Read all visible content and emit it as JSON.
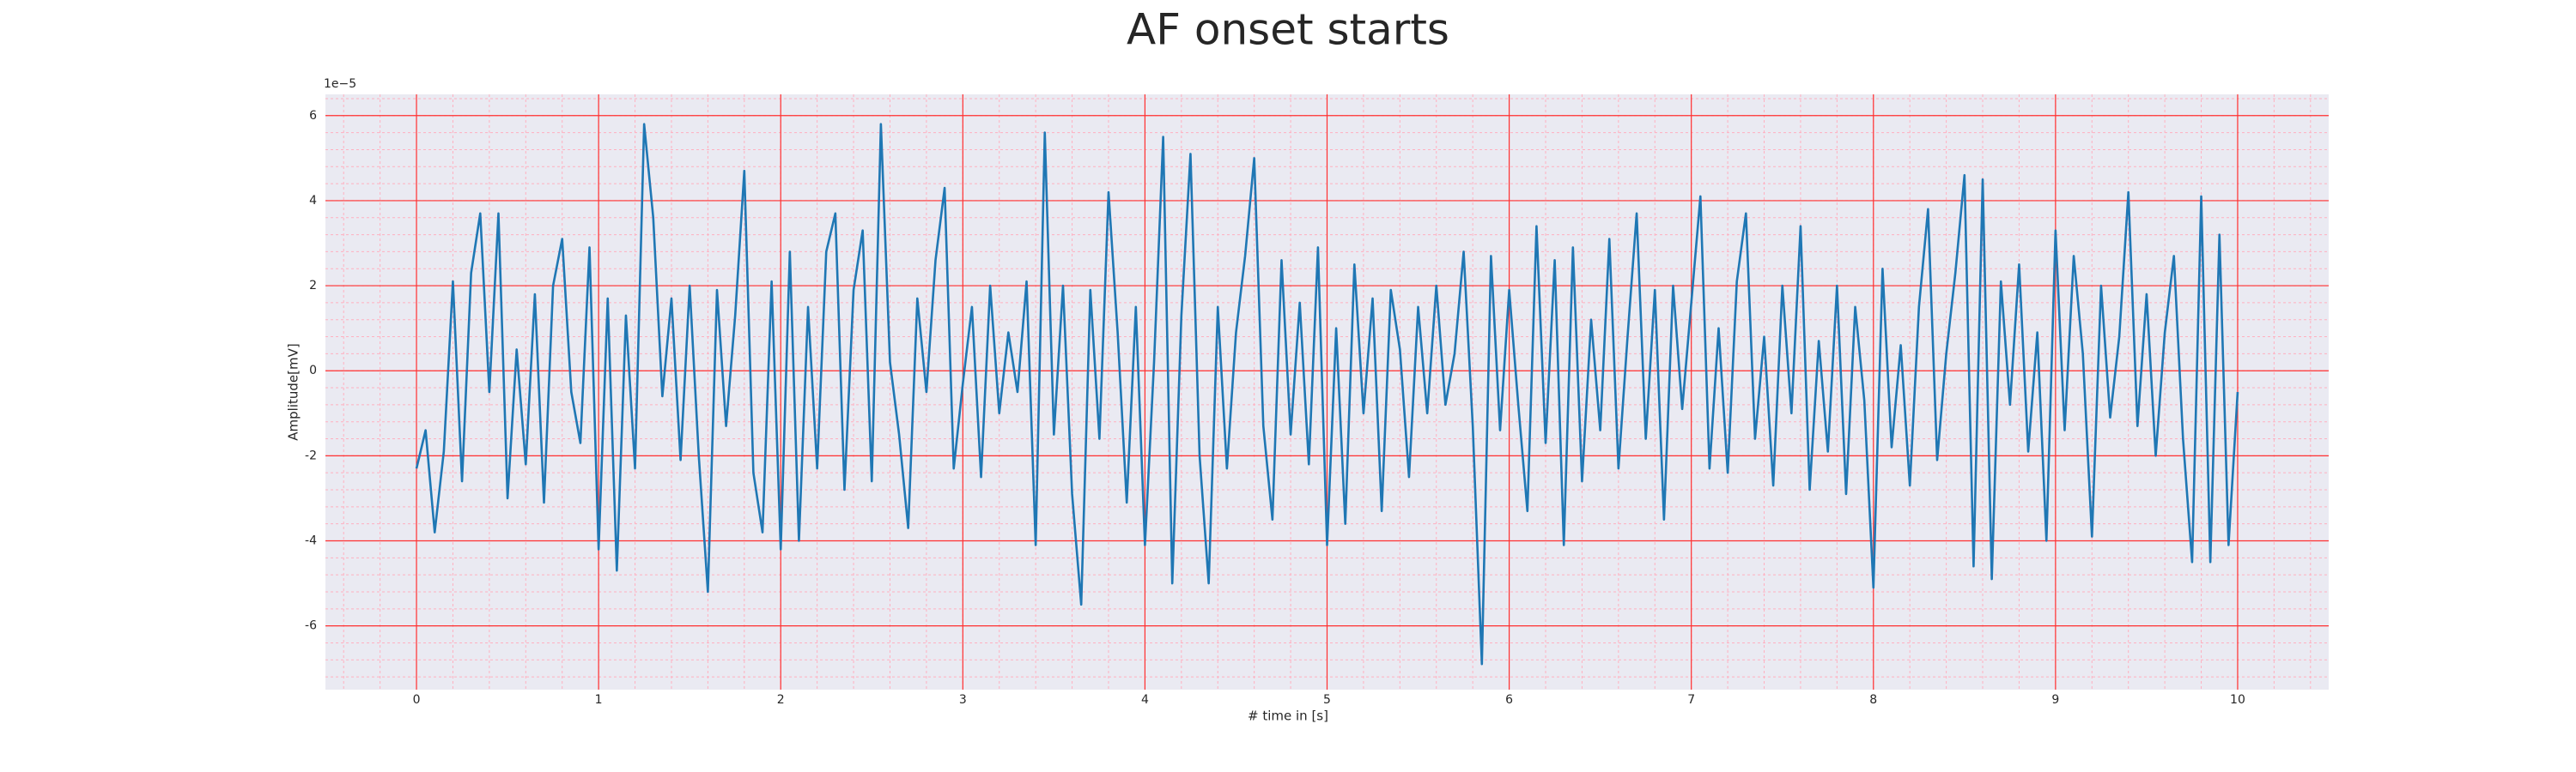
{
  "chart_data": {
    "type": "line",
    "title": "AF onset starts",
    "xlabel": "# time in [s]",
    "ylabel": "Amplitude[mV]",
    "y_offset_text": "1e−5",
    "x": [
      0,
      0.05,
      0.1,
      0.15,
      0.2,
      0.25,
      0.3,
      0.35,
      0.4,
      0.45,
      0.5,
      0.55,
      0.6,
      0.65,
      0.7,
      0.75,
      0.8,
      0.85,
      0.9,
      0.95,
      1,
      1.05,
      1.1,
      1.15,
      1.2,
      1.25,
      1.3,
      1.35,
      1.4,
      1.45,
      1.5,
      1.55,
      1.6,
      1.65,
      1.7,
      1.75,
      1.8,
      1.85,
      1.9,
      1.95,
      2,
      2.05,
      2.1,
      2.15,
      2.2,
      2.25,
      2.3,
      2.35,
      2.4,
      2.45,
      2.5,
      2.55,
      2.6,
      2.65,
      2.7,
      2.75,
      2.8,
      2.85,
      2.9,
      2.95,
      3,
      3.05,
      3.1,
      3.15,
      3.2,
      3.25,
      3.3,
      3.35,
      3.4,
      3.45,
      3.5,
      3.55,
      3.6,
      3.65,
      3.7,
      3.75,
      3.8,
      3.85,
      3.9,
      3.95,
      4,
      4.05,
      4.1,
      4.15,
      4.2,
      4.25,
      4.3,
      4.35,
      4.4,
      4.45,
      4.5,
      4.55,
      4.6,
      4.65,
      4.7,
      4.75,
      4.8,
      4.85,
      4.9,
      4.95,
      5,
      5.05,
      5.1,
      5.15,
      5.2,
      5.25,
      5.3,
      5.35,
      5.4,
      5.45,
      5.5,
      5.55,
      5.6,
      5.65,
      5.7,
      5.75,
      5.8,
      5.85,
      5.9,
      5.95,
      6,
      6.05,
      6.1,
      6.15,
      6.2,
      6.25,
      6.3,
      6.35,
      6.4,
      6.45,
      6.5,
      6.55,
      6.6,
      6.65,
      6.7,
      6.75,
      6.8,
      6.85,
      6.9,
      6.95,
      7,
      7.05,
      7.1,
      7.15,
      7.2,
      7.25,
      7.3,
      7.35,
      7.4,
      7.45,
      7.5,
      7.55,
      7.6,
      7.65,
      7.7,
      7.75,
      7.8,
      7.85,
      7.9,
      7.95,
      8,
      8.05,
      8.1,
      8.15,
      8.2,
      8.25,
      8.3,
      8.35,
      8.4,
      8.45,
      8.5,
      8.55,
      8.6,
      8.65,
      8.7,
      8.75,
      8.8,
      8.85,
      8.9,
      8.95,
      9,
      9.05,
      9.1,
      9.15,
      9.2,
      9.25,
      9.3,
      9.35,
      9.4,
      9.45,
      9.5,
      9.55,
      9.6,
      9.65,
      9.7,
      9.75,
      9.8,
      9.85,
      9.9,
      9.95,
      10
    ],
    "series": [
      {
        "color": "#1f77b4",
        "values": [
          -2.3,
          -1.4,
          -3.8,
          -1.9,
          2.1,
          -2.6,
          2.3,
          3.7,
          -0.5,
          3.7,
          -3.0,
          0.5,
          -2.2,
          1.8,
          -3.1,
          2.0,
          3.1,
          -0.5,
          -1.7,
          2.9,
          -4.2,
          1.7,
          -4.7,
          1.3,
          -2.3,
          5.8,
          3.6,
          -0.6,
          1.7,
          -2.1,
          2.0,
          -2.0,
          -5.2,
          1.9,
          -1.3,
          1.3,
          4.7,
          -2.4,
          -3.8,
          2.1,
          -4.2,
          2.8,
          -4.0,
          1.5,
          -2.3,
          2.8,
          3.7,
          -2.8,
          1.9,
          3.3,
          -2.6,
          5.8,
          0.2,
          -1.5,
          -3.7,
          1.7,
          -0.5,
          2.6,
          4.3,
          -2.3,
          -0.3,
          1.5,
          -2.5,
          2.0,
          -1.0,
          0.9,
          -0.5,
          2.1,
          -4.1,
          5.6,
          -1.5,
          2.0,
          -2.9,
          -5.5,
          1.9,
          -1.6,
          4.2,
          0.9,
          -3.1,
          1.5,
          -4.1,
          0.2,
          5.5,
          -5.0,
          1.3,
          5.1,
          -2.0,
          -5.0,
          1.5,
          -2.3,
          0.9,
          2.7,
          5.0,
          -1.3,
          -3.5,
          2.6,
          -1.5,
          1.6,
          -2.2,
          2.9,
          -4.1,
          1.0,
          -3.6,
          2.5,
          -1.0,
          1.7,
          -3.3,
          1.9,
          0.5,
          -2.5,
          1.5,
          -1.0,
          2.0,
          -0.8,
          0.4,
          2.8,
          -1.3,
          -6.9,
          2.7,
          -1.4,
          1.9,
          -0.8,
          -3.3,
          3.4,
          -1.7,
          2.6,
          -4.1,
          2.9,
          -2.6,
          1.2,
          -1.4,
          3.1,
          -2.3,
          0.8,
          3.7,
          -1.6,
          1.9,
          -3.5,
          2.0,
          -0.9,
          1.6,
          4.1,
          -2.3,
          1.0,
          -2.4,
          2.1,
          3.7,
          -1.6,
          0.8,
          -2.7,
          2.0,
          -1.0,
          3.4,
          -2.8,
          0.7,
          -1.9,
          2.0,
          -2.9,
          1.5,
          -0.7,
          -5.1,
          2.4,
          -1.8,
          0.6,
          -2.7,
          1.5,
          3.8,
          -2.1,
          0.4,
          2.3,
          4.6,
          -4.6,
          4.5,
          -4.9,
          2.1,
          -0.8,
          2.5,
          -1.9,
          0.9,
          -4.0,
          3.3,
          -1.4,
          2.7,
          0.4,
          -3.9,
          2.0,
          -1.1,
          0.8,
          4.2,
          -1.3,
          1.8,
          -2.0,
          0.9,
          2.7,
          -1.6,
          -4.5,
          4.1,
          -4.5,
          3.2,
          -4.1,
          -0.5
        ]
      }
    ],
    "xlim": [
      -0.5,
      10.5
    ],
    "xticks": [
      0,
      1,
      2,
      3,
      4,
      5,
      6,
      7,
      8,
      9,
      10
    ],
    "ylim": [
      -7.5,
      6.5
    ],
    "yticks": [
      -6,
      -4,
      -2,
      0,
      2,
      4,
      6
    ],
    "grid": true,
    "minor_grid": true,
    "grid_color": "#ff3030",
    "minor_grid_color": "#ffb0c0",
    "background": "#eaeaf2"
  }
}
